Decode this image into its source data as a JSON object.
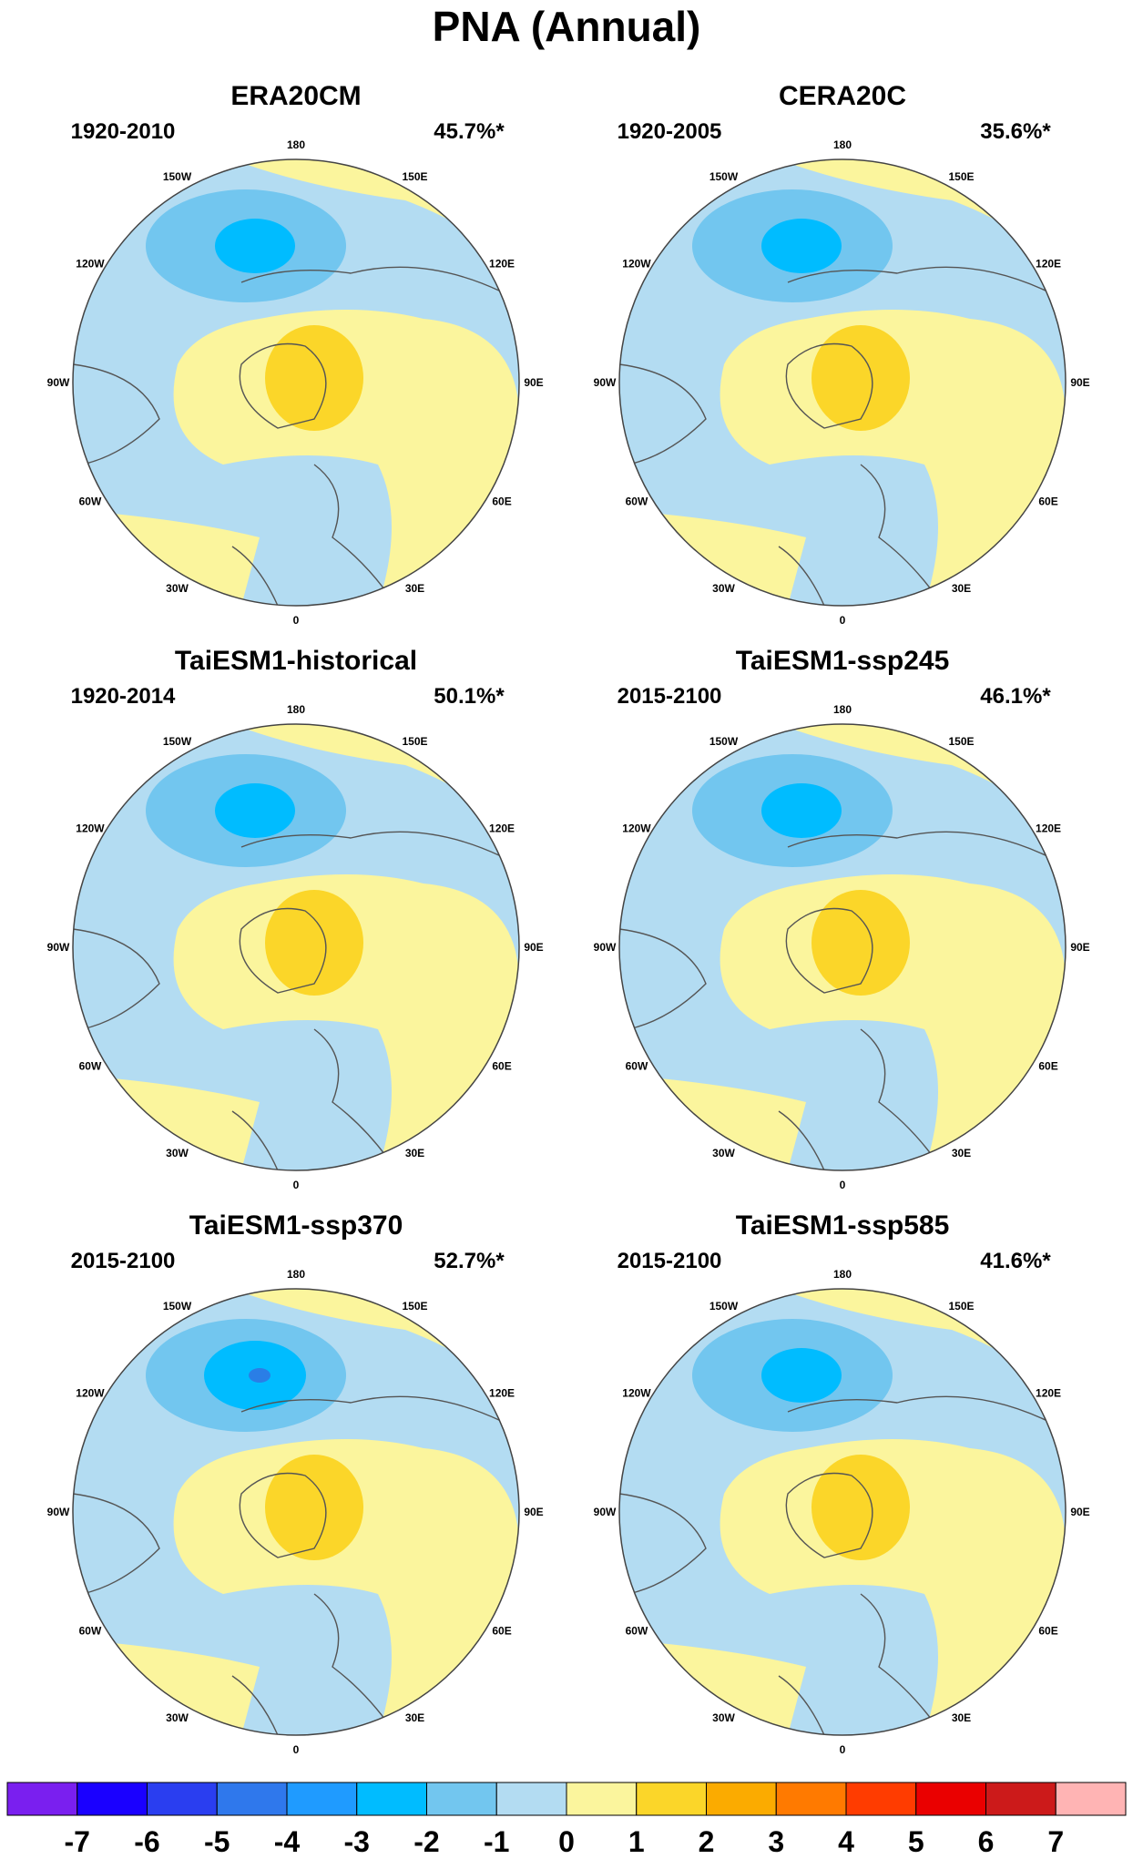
{
  "title": "PNA (Annual)",
  "colors": {
    "ocean_blue": "#b3dcf2",
    "mid_blue": "#72c6ef",
    "deep_blue": "#00bcff",
    "core_blue": "#2a7ee6",
    "light_yellow": "#fbf59d",
    "mid_yellow": "#fbd629",
    "outline": "#444444",
    "coast": "#555555"
  },
  "longitude_labels": [
    "180",
    "150E",
    "120E",
    "90E",
    "60E",
    "30E",
    "0",
    "30W",
    "60W",
    "90W",
    "120W",
    "150W"
  ],
  "panels": [
    {
      "title": "ERA20CM",
      "period": "1920-2010",
      "variance": "45.7%*",
      "blue_level": 3,
      "yellow_level": 2
    },
    {
      "title": "CERA20C",
      "period": "1920-2005",
      "variance": "35.6%*",
      "blue_level": 3,
      "yellow_level": 2
    },
    {
      "title": "TaiESM1-historical",
      "period": "1920-2014",
      "variance": "50.1%*",
      "blue_level": 3,
      "yellow_level": 2
    },
    {
      "title": "TaiESM1-ssp245",
      "period": "2015-2100",
      "variance": "46.1%*",
      "blue_level": 3,
      "yellow_level": 2
    },
    {
      "title": "TaiESM1-ssp370",
      "period": "2015-2100",
      "variance": "52.7%*",
      "blue_level": 4,
      "yellow_level": 2
    },
    {
      "title": "TaiESM1-ssp585",
      "period": "2015-2100",
      "variance": "41.6%*",
      "blue_level": 3,
      "yellow_level": 2
    }
  ],
  "colorbar": {
    "colors": [
      "#7a1fef",
      "#1a00ff",
      "#2a3ef0",
      "#2f78ec",
      "#1f9bff",
      "#00bcff",
      "#72c6ef",
      "#b3dcf2",
      "#fbf59d",
      "#fbd629",
      "#fbab00",
      "#ff7a00",
      "#ff3c00",
      "#ea0000",
      "#cc1a1a",
      "#ffb4b4"
    ],
    "labels": [
      "-7",
      "-6",
      "-5",
      "-4",
      "-3",
      "-2",
      "-1",
      "0",
      "1",
      "2",
      "3",
      "4",
      "5",
      "6",
      "7"
    ]
  }
}
